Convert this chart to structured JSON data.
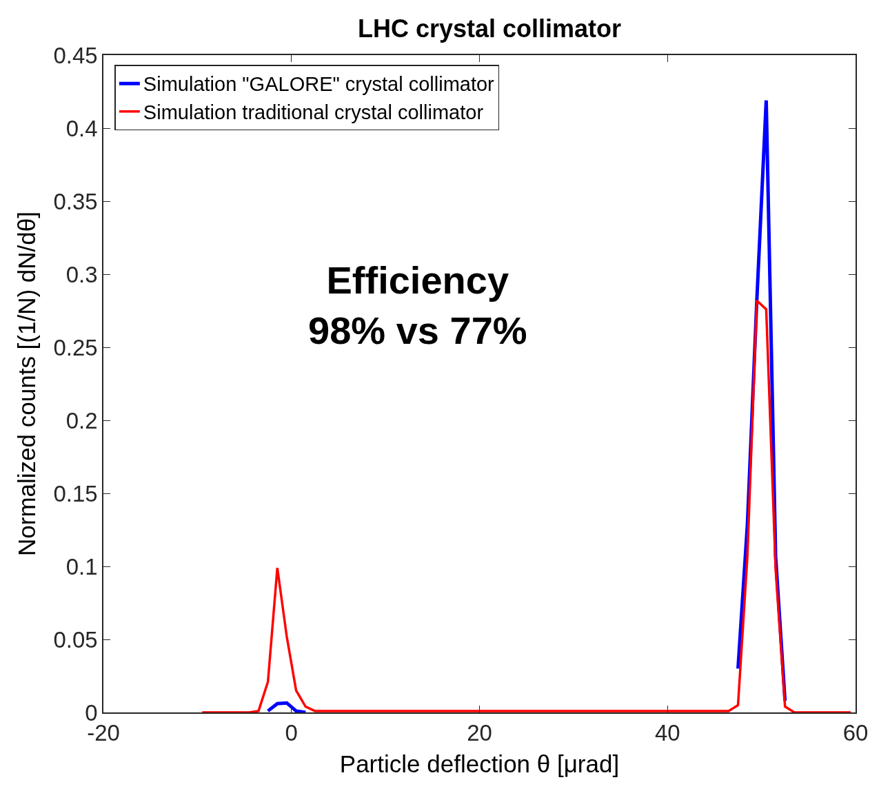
{
  "chart_data": {
    "type": "line",
    "title": "LHC crystal collimator",
    "xlabel": "Particle deflection θ [μrad]",
    "ylabel": "Normalized counts [(1/N) dN/dθ]",
    "x": [
      -9.5,
      -8.5,
      -7.5,
      -6.5,
      -5.5,
      -4.5,
      -3.5,
      -2.5,
      -1.5,
      -0.5,
      0.5,
      1.5,
      2.5,
      3.5,
      4.5,
      5.5,
      6.5,
      7.5,
      8.5,
      9.5,
      10.5,
      11.5,
      12.5,
      13.5,
      14.5,
      15.5,
      16.5,
      17.5,
      18.5,
      19.5,
      20.5,
      21.5,
      22.5,
      23.5,
      24.5,
      25.5,
      26.5,
      27.5,
      28.5,
      29.5,
      30.5,
      31.5,
      32.5,
      33.5,
      34.5,
      35.5,
      36.5,
      37.5,
      38.5,
      39.5,
      40.5,
      41.5,
      42.5,
      43.5,
      44.5,
      45.5,
      46.5,
      47.5,
      48.5,
      49.5,
      50.5,
      51.5,
      52.5,
      53.5,
      54.5,
      55.5,
      56.5,
      57.5,
      58.5,
      59.5
    ],
    "series": [
      {
        "name": "Simulation \"GALORE\" crystal collimator",
        "color": "#0000ff",
        "values": [
          null,
          null,
          null,
          null,
          null,
          null,
          null,
          0.001,
          0.006,
          0.0065,
          0.001,
          0,
          null,
          null,
          null,
          null,
          null,
          null,
          null,
          null,
          null,
          null,
          null,
          null,
          null,
          null,
          null,
          null,
          null,
          null,
          null,
          null,
          null,
          null,
          null,
          null,
          null,
          null,
          null,
          null,
          null,
          null,
          null,
          null,
          null,
          null,
          null,
          null,
          null,
          null,
          null,
          null,
          null,
          null,
          null,
          null,
          null,
          0.03,
          0.129,
          0.282,
          0.419,
          0.107,
          0.008,
          null,
          null,
          null,
          null,
          null,
          null,
          null
        ]
      },
      {
        "name": "Simulation traditional crystal collimator",
        "color": "#ff0000",
        "values": [
          0,
          0,
          0,
          0,
          0,
          0,
          0.001,
          0.021,
          0.099,
          0.052,
          0.015,
          0.004,
          0.001,
          0.001,
          0.001,
          0.001,
          0.001,
          0.001,
          0.001,
          0.001,
          0.001,
          0.001,
          0.001,
          0.001,
          0.001,
          0.001,
          0.001,
          0.001,
          0.001,
          0.001,
          0.001,
          0.001,
          0.001,
          0.001,
          0.001,
          0.001,
          0.001,
          0.001,
          0.001,
          0.001,
          0.001,
          0.001,
          0.001,
          0.001,
          0.001,
          0.001,
          0.001,
          0.001,
          0.001,
          0.001,
          0.001,
          0.001,
          0.001,
          0.001,
          0.001,
          0.001,
          0.001,
          0.005,
          0.107,
          0.282,
          0.276,
          0.098,
          0.004,
          0,
          0,
          0,
          0,
          0,
          0,
          0
        ]
      }
    ],
    "xlim": [
      -20,
      60
    ],
    "xticks": [
      -20,
      0,
      20,
      40,
      60
    ],
    "ylim": [
      0,
      0.45
    ],
    "yticks": [
      0,
      0.05,
      0.1,
      0.15,
      0.2,
      0.25,
      0.3,
      0.35,
      0.4,
      0.45
    ],
    "annotations": [
      "Efficiency\n98% vs 77%"
    ],
    "legend": "top left",
    "line_style": "solid",
    "marker": "none"
  }
}
